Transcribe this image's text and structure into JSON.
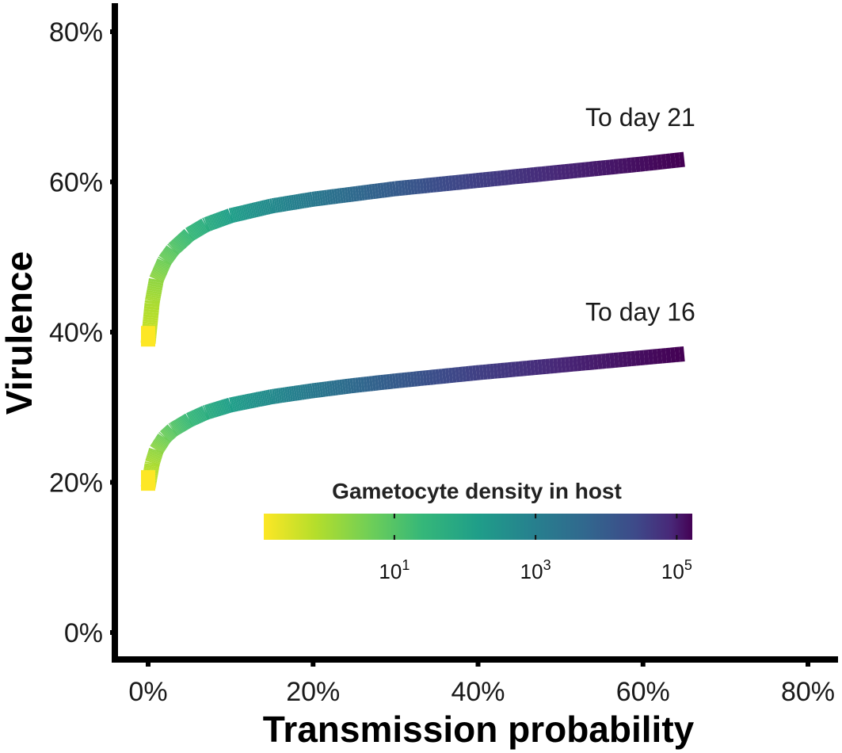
{
  "chart_data": {
    "type": "line",
    "title": "",
    "xlabel": "Transmission probability",
    "ylabel": "Virulence",
    "xlim": [
      0,
      80
    ],
    "ylim": [
      0,
      80
    ],
    "x_ticks": [
      0,
      20,
      40,
      60,
      80
    ],
    "y_ticks": [
      0,
      20,
      40,
      60,
      80
    ],
    "x_tick_labels": [
      "0%",
      "20%",
      "40%",
      "60%",
      "80%"
    ],
    "y_tick_labels": [
      "0%",
      "20%",
      "40%",
      "60%",
      "80%"
    ],
    "grid": false,
    "color_scale": "viridis",
    "series": [
      {
        "name": "To day 21",
        "label": "To day 21",
        "x": [
          0,
          0.5,
          1,
          2,
          3,
          5,
          7,
          10,
          15,
          20,
          25,
          30,
          40,
          50,
          60,
          65
        ],
        "y": [
          38.5,
          44,
          47,
          49.5,
          51,
          53,
          54.3,
          55.5,
          56.8,
          57.7,
          58.4,
          59.1,
          60.2,
          61.3,
          62.4,
          63
        ]
      },
      {
        "name": "To day 16",
        "label": "To day 16",
        "x": [
          0,
          0.5,
          1,
          2,
          3,
          5,
          7,
          10,
          15,
          20,
          25,
          30,
          40,
          50,
          60,
          65
        ],
        "y": [
          19.3,
          22.5,
          24.3,
          26,
          27,
          28.3,
          29.3,
          30.3,
          31.4,
          32.2,
          32.9,
          33.5,
          34.6,
          35.6,
          36.6,
          37.1
        ]
      }
    ],
    "legend": {
      "title": "Gametocyte density in host",
      "position": "bottom-right",
      "ticks": [
        {
          "base": "10",
          "exp": "1"
        },
        {
          "base": "10",
          "exp": "3"
        },
        {
          "base": "10",
          "exp": "5"
        }
      ]
    }
  }
}
